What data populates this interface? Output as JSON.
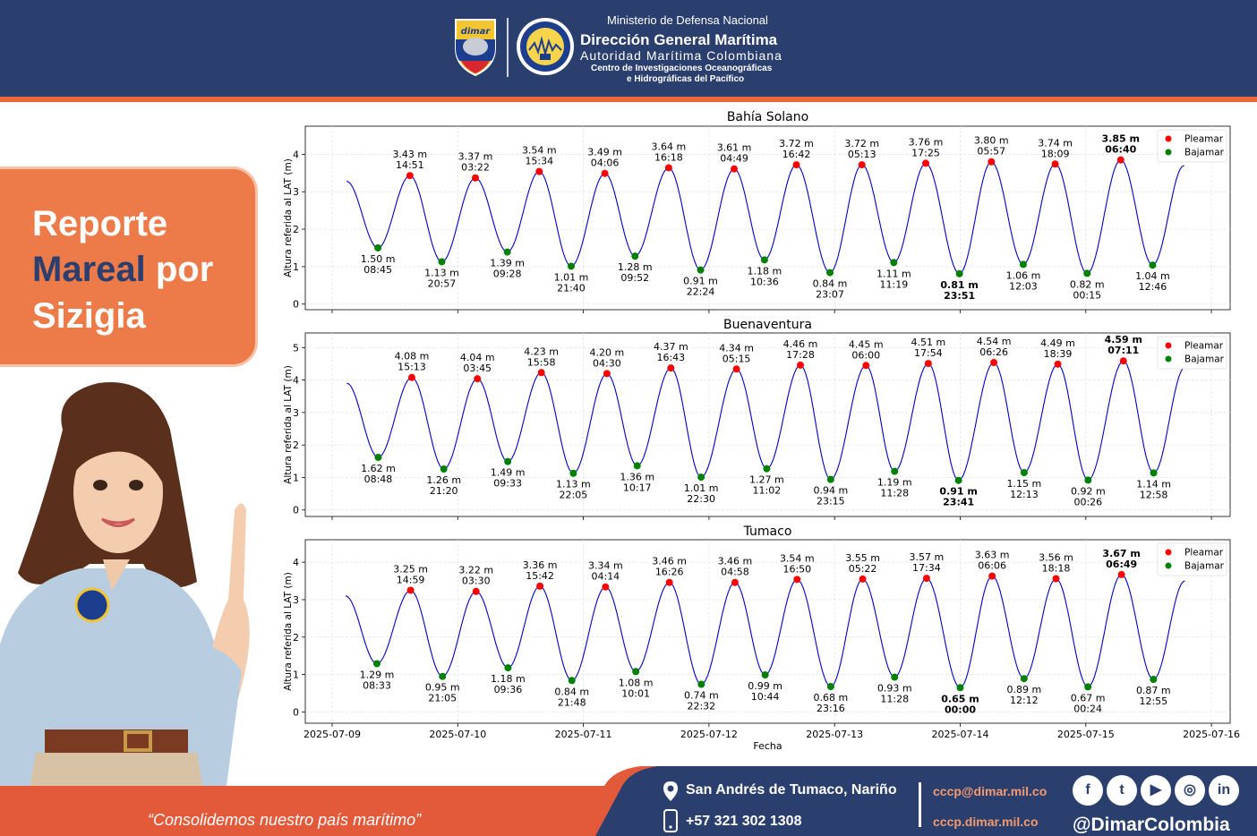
{
  "header": {
    "ministry": "Ministerio de Defensa Nacional",
    "org_name": "Dirección General Marítima",
    "authority": "Autoridad Marítima Colombiana",
    "center_line1": "Centro de Investigaciones Oceanográficas",
    "center_line2": "e Hidrográficas del Pacífico",
    "logo_text": "dimar"
  },
  "title_card": {
    "line1": "Reporte",
    "line2_highlight": "Mareal",
    "line2_rest": "por",
    "line3": "Sizigia"
  },
  "footer": {
    "slogan": "“Consolidemos nuestro país marítimo”",
    "address": "San Andrés de Tumaco, Nariño",
    "phone": "+57 321 302 1308",
    "email": "cccp@dimar.mil.co",
    "website": "cccp.dimar.mil.co",
    "social_handle": "@DimarColombia",
    "social_icons": [
      "facebook-icon",
      "twitter-icon",
      "youtube-icon",
      "instagram-icon",
      "linkedin-icon"
    ]
  },
  "colors": {
    "navy": "#2b3f6e",
    "orange": "#ec7b49",
    "accent_red": "#e35a3b",
    "curve": "#0000cd",
    "high_marker": "#ff0000",
    "low_marker": "#008000"
  },
  "chart_data": [
    {
      "type": "line",
      "title": "Bahía Solano",
      "ylabel": "Altura referida al LAT (m)",
      "xlabel": "",
      "ylim": [
        -0.15,
        4.75
      ],
      "yticks": [
        0,
        1,
        2,
        3,
        4
      ],
      "legend": [
        "Pleamar",
        "Bajamar"
      ],
      "legend_position": "top-right",
      "grid": true,
      "start_value": 3.28,
      "end_value": 3.7,
      "highs": [
        {
          "label": "3.43 m",
          "time": "14:51",
          "value": 3.43,
          "x": "2025-07-09 14:51"
        },
        {
          "label": "3.37 m",
          "time": "03:22",
          "value": 3.37,
          "x": "2025-07-10 03:22"
        },
        {
          "label": "3.54 m",
          "time": "15:34",
          "value": 3.54,
          "x": "2025-07-10 15:34"
        },
        {
          "label": "3.49 m",
          "time": "04:06",
          "value": 3.49,
          "x": "2025-07-11 04:06"
        },
        {
          "label": "3.64 m",
          "time": "16:18",
          "value": 3.64,
          "x": "2025-07-11 16:18"
        },
        {
          "label": "3.61 m",
          "time": "04:49",
          "value": 3.61,
          "x": "2025-07-12 04:49"
        },
        {
          "label": "3.72 m",
          "time": "16:42",
          "value": 3.72,
          "x": "2025-07-12 16:42"
        },
        {
          "label": "3.72 m",
          "time": "05:13",
          "value": 3.72,
          "x": "2025-07-13 05:13"
        },
        {
          "label": "3.76 m",
          "time": "17:25",
          "value": 3.76,
          "x": "2025-07-13 17:25"
        },
        {
          "label": "3.80 m",
          "time": "05:57",
          "value": 3.8,
          "x": "2025-07-14 05:57"
        },
        {
          "label": "3.74 m",
          "time": "18:09",
          "value": 3.74,
          "x": "2025-07-14 18:09"
        },
        {
          "label": "3.85 m",
          "time": "06:40",
          "value": 3.85,
          "x": "2025-07-15 06:40",
          "bold": true
        }
      ],
      "lows": [
        {
          "label": "1.50 m",
          "time": "08:45",
          "value": 1.5,
          "x": "2025-07-09 08:45"
        },
        {
          "label": "1.13 m",
          "time": "20:57",
          "value": 1.13,
          "x": "2025-07-09 20:57"
        },
        {
          "label": "1.39 m",
          "time": "09:28",
          "value": 1.39,
          "x": "2025-07-10 09:28"
        },
        {
          "label": "1.01 m",
          "time": "21:40",
          "value": 1.01,
          "x": "2025-07-10 21:40"
        },
        {
          "label": "1.28 m",
          "time": "09:52",
          "value": 1.28,
          "x": "2025-07-11 09:52"
        },
        {
          "label": "0.91 m",
          "time": "22:24",
          "value": 0.91,
          "x": "2025-07-11 22:24"
        },
        {
          "label": "1.18 m",
          "time": "10:36",
          "value": 1.18,
          "x": "2025-07-12 10:36"
        },
        {
          "label": "0.84 m",
          "time": "23:07",
          "value": 0.84,
          "x": "2025-07-12 23:07"
        },
        {
          "label": "1.11 m",
          "time": "11:19",
          "value": 1.11,
          "x": "2025-07-13 11:19"
        },
        {
          "label": "0.81 m",
          "time": "23:51",
          "value": 0.81,
          "x": "2025-07-13 23:51",
          "bold": true
        },
        {
          "label": "1.06 m",
          "time": "12:03",
          "value": 1.06,
          "x": "2025-07-14 12:03"
        },
        {
          "label": "0.82 m",
          "time": "00:15",
          "value": 0.82,
          "x": "2025-07-15 00:15"
        },
        {
          "label": "1.04 m",
          "time": "12:46",
          "value": 1.04,
          "x": "2025-07-15 12:46"
        }
      ]
    },
    {
      "type": "line",
      "title": "Buenaventura",
      "ylabel": "Altura referida al LAT (m)",
      "xlabel": "",
      "ylim": [
        -0.2,
        5.45
      ],
      "yticks": [
        0,
        1,
        2,
        3,
        4,
        5
      ],
      "legend": [
        "Pleamar",
        "Bajamar"
      ],
      "legend_position": "top-right",
      "grid": true,
      "start_value": 3.9,
      "end_value": 4.4,
      "highs": [
        {
          "label": "4.08 m",
          "time": "15:13",
          "value": 4.08,
          "x": "2025-07-09 15:13"
        },
        {
          "label": "4.04 m",
          "time": "03:45",
          "value": 4.04,
          "x": "2025-07-10 03:45"
        },
        {
          "label": "4.23 m",
          "time": "15:58",
          "value": 4.23,
          "x": "2025-07-10 15:58"
        },
        {
          "label": "4.20 m",
          "time": "04:30",
          "value": 4.2,
          "x": "2025-07-11 04:30"
        },
        {
          "label": "4.37 m",
          "time": "16:43",
          "value": 4.37,
          "x": "2025-07-11 16:43"
        },
        {
          "label": "4.34 m",
          "time": "05:15",
          "value": 4.34,
          "x": "2025-07-12 05:15"
        },
        {
          "label": "4.46 m",
          "time": "17:28",
          "value": 4.46,
          "x": "2025-07-12 17:28"
        },
        {
          "label": "4.45 m",
          "time": "06:00",
          "value": 4.45,
          "x": "2025-07-13 06:00"
        },
        {
          "label": "4.51 m",
          "time": "17:54",
          "value": 4.51,
          "x": "2025-07-13 17:54"
        },
        {
          "label": "4.54 m",
          "time": "06:26",
          "value": 4.54,
          "x": "2025-07-14 06:26"
        },
        {
          "label": "4.49 m",
          "time": "18:39",
          "value": 4.49,
          "x": "2025-07-14 18:39"
        },
        {
          "label": "4.59 m",
          "time": "07:11",
          "value": 4.59,
          "x": "2025-07-15 07:11",
          "bold": true
        }
      ],
      "lows": [
        {
          "label": "1.62 m",
          "time": "08:48",
          "value": 1.62,
          "x": "2025-07-09 08:48"
        },
        {
          "label": "1.26 m",
          "time": "21:20",
          "value": 1.26,
          "x": "2025-07-09 21:20"
        },
        {
          "label": "1.49 m",
          "time": "09:33",
          "value": 1.49,
          "x": "2025-07-10 09:33"
        },
        {
          "label": "1.13 m",
          "time": "22:05",
          "value": 1.13,
          "x": "2025-07-10 22:05"
        },
        {
          "label": "1.36 m",
          "time": "10:17",
          "value": 1.36,
          "x": "2025-07-11 10:17"
        },
        {
          "label": "1.01 m",
          "time": "22:30",
          "value": 1.01,
          "x": "2025-07-11 22:30"
        },
        {
          "label": "1.27 m",
          "time": "11:02",
          "value": 1.27,
          "x": "2025-07-12 11:02"
        },
        {
          "label": "0.94 m",
          "time": "23:15",
          "value": 0.94,
          "x": "2025-07-12 23:15"
        },
        {
          "label": "1.19 m",
          "time": "11:28",
          "value": 1.19,
          "x": "2025-07-13 11:28"
        },
        {
          "label": "0.91 m",
          "time": "23:41",
          "value": 0.91,
          "x": "2025-07-13 23:41",
          "bold": true
        },
        {
          "label": "1.15 m",
          "time": "12:13",
          "value": 1.15,
          "x": "2025-07-14 12:13"
        },
        {
          "label": "0.92 m",
          "time": "00:26",
          "value": 0.92,
          "x": "2025-07-15 00:26"
        },
        {
          "label": "1.14 m",
          "time": "12:58",
          "value": 1.14,
          "x": "2025-07-15 12:58"
        }
      ]
    },
    {
      "type": "line",
      "title": "Tumaco",
      "ylabel": "Altura referida al LAT (m)",
      "xlabel": "Fecha",
      "ylim": [
        -0.3,
        4.6
      ],
      "yticks": [
        0,
        1,
        2,
        3,
        4
      ],
      "xticks": [
        "2025-07-09",
        "2025-07-10",
        "2025-07-11",
        "2025-07-12",
        "2025-07-13",
        "2025-07-14",
        "2025-07-15",
        "2025-07-16"
      ],
      "legend": [
        "Pleamar",
        "Bajamar"
      ],
      "legend_position": "top-right",
      "grid": true,
      "start_value": 3.1,
      "end_value": 3.5,
      "highs": [
        {
          "label": "3.25 m",
          "time": "14:59",
          "value": 3.25,
          "x": "2025-07-09 14:59"
        },
        {
          "label": "3.22 m",
          "time": "03:30",
          "value": 3.22,
          "x": "2025-07-10 03:30"
        },
        {
          "label": "3.36 m",
          "time": "15:42",
          "value": 3.36,
          "x": "2025-07-10 15:42"
        },
        {
          "label": "3.34 m",
          "time": "04:14",
          "value": 3.34,
          "x": "2025-07-11 04:14"
        },
        {
          "label": "3.46 m",
          "time": "16:26",
          "value": 3.46,
          "x": "2025-07-11 16:26"
        },
        {
          "label": "3.46 m",
          "time": "04:58",
          "value": 3.46,
          "x": "2025-07-12 04:58"
        },
        {
          "label": "3.54 m",
          "time": "16:50",
          "value": 3.54,
          "x": "2025-07-12 16:50"
        },
        {
          "label": "3.55 m",
          "time": "05:22",
          "value": 3.55,
          "x": "2025-07-13 05:22"
        },
        {
          "label": "3.57 m",
          "time": "17:34",
          "value": 3.57,
          "x": "2025-07-13 17:34"
        },
        {
          "label": "3.63 m",
          "time": "06:06",
          "value": 3.63,
          "x": "2025-07-14 06:06"
        },
        {
          "label": "3.56 m",
          "time": "18:18",
          "value": 3.56,
          "x": "2025-07-14 18:18"
        },
        {
          "label": "3.67 m",
          "time": "06:49",
          "value": 3.67,
          "x": "2025-07-15 06:49",
          "bold": true
        }
      ],
      "lows": [
        {
          "label": "1.29 m",
          "time": "08:33",
          "value": 1.29,
          "x": "2025-07-09 08:33"
        },
        {
          "label": "0.95 m",
          "time": "21:05",
          "value": 0.95,
          "x": "2025-07-09 21:05"
        },
        {
          "label": "1.18 m",
          "time": "09:36",
          "value": 1.18,
          "x": "2025-07-10 09:36"
        },
        {
          "label": "0.84 m",
          "time": "21:48",
          "value": 0.84,
          "x": "2025-07-10 21:48"
        },
        {
          "label": "1.08 m",
          "time": "10:01",
          "value": 1.08,
          "x": "2025-07-11 10:01"
        },
        {
          "label": "0.74 m",
          "time": "22:32",
          "value": 0.74,
          "x": "2025-07-11 22:32"
        },
        {
          "label": "0.99 m",
          "time": "10:44",
          "value": 0.99,
          "x": "2025-07-12 10:44"
        },
        {
          "label": "0.68 m",
          "time": "23:16",
          "value": 0.68,
          "x": "2025-07-12 23:16"
        },
        {
          "label": "0.93 m",
          "time": "11:28",
          "value": 0.93,
          "x": "2025-07-13 11:28"
        },
        {
          "label": "0.65 m",
          "time": "00:00",
          "value": 0.65,
          "x": "2025-07-14 00:00",
          "bold": true
        },
        {
          "label": "0.89 m",
          "time": "12:12",
          "value": 0.89,
          "x": "2025-07-14 12:12"
        },
        {
          "label": "0.67 m",
          "time": "00:24",
          "value": 0.67,
          "x": "2025-07-15 00:24"
        },
        {
          "label": "0.87 m",
          "time": "12:55",
          "value": 0.87,
          "x": "2025-07-15 12:55"
        }
      ]
    }
  ]
}
